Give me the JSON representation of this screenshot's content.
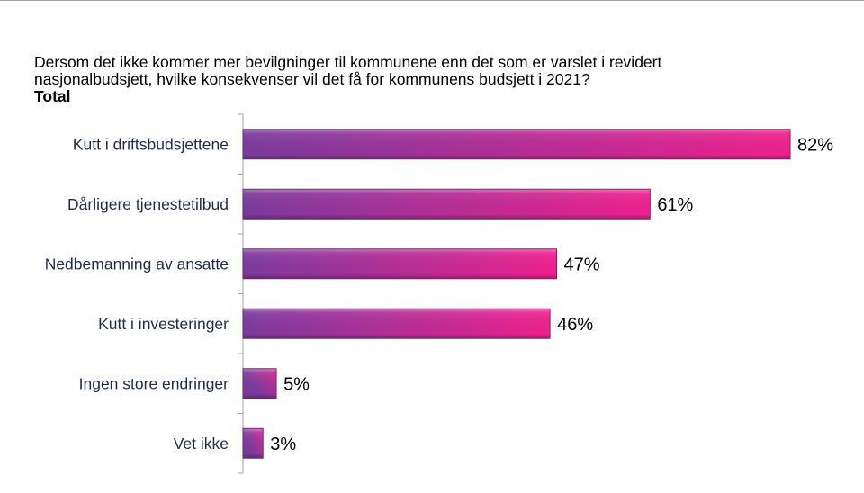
{
  "chart_data": {
    "type": "bar",
    "orientation": "horizontal",
    "title": "Dersom det ikke kommer mer bevilgninger til kommunene enn det som er varslet i revidert nasjonalbudsjett, hvilke konsekvenser vil det få for kommunens budsjett i 2021?",
    "title_lines": [
      "Dersom det ikke kommer mer bevilgninger til kommunene enn det som er varslet i revidert",
      "nasjonalbudsjett, hvilke konsekvenser vil det få for kommunens budsjett i 2021?"
    ],
    "subtitle": "Total",
    "categories": [
      "Kutt i driftsbudsjettene",
      "Dårligere tjenestetilbud",
      "Nedbemanning av ansatte",
      "Kutt i investeringer",
      "Ingen store endringer",
      "Vet ikke"
    ],
    "values": [
      82,
      61,
      47,
      46,
      5,
      3
    ],
    "value_labels": [
      "82%",
      "61%",
      "47%",
      "46%",
      "5%",
      "3%"
    ],
    "unit": "%",
    "xlabel": "",
    "ylabel": "",
    "xlim": [
      0,
      90
    ],
    "grid": false,
    "legend": "none",
    "colors": {
      "gradient_start": "#7b3a9e",
      "gradient_end": "#f0208e",
      "bar_edge": "#6a2a6a",
      "category_text": "#1f2d4a",
      "axis": "#a6a6a6"
    }
  }
}
